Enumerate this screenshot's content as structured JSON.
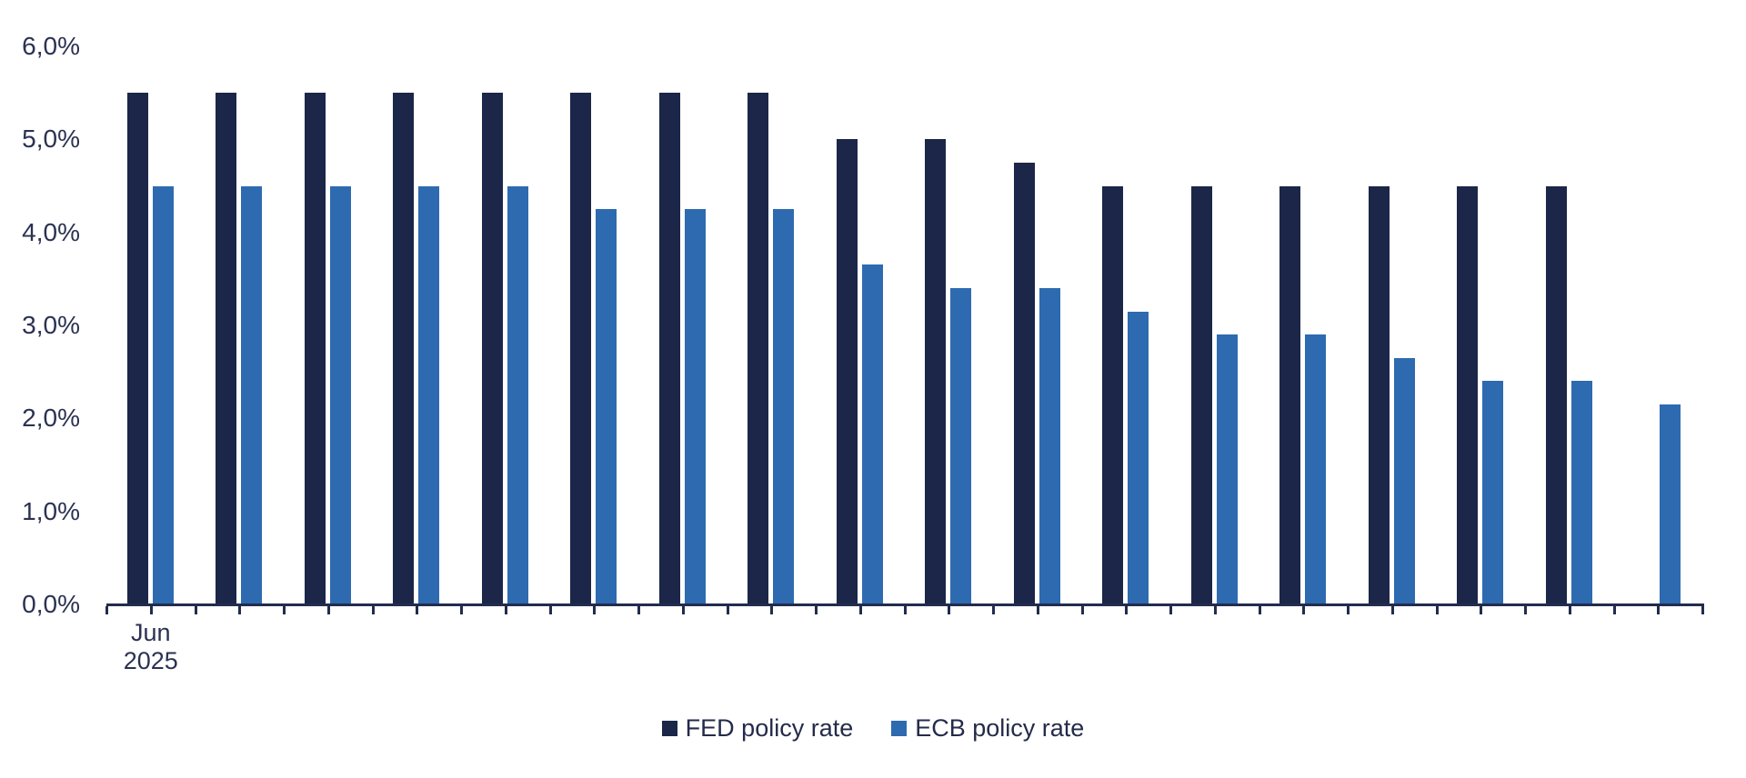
{
  "chart_data": {
    "type": "bar",
    "title": "",
    "grid": "off",
    "background": "#ffffff",
    "legend_position": "bottom-center",
    "ylim": [
      0,
      6
    ],
    "y_ticks": [
      "0,0%",
      "1,0%",
      "2,0%",
      "3,0%",
      "4,0%",
      "5,0%",
      "6,0%"
    ],
    "x_first_group_label_lines": [
      "Jun",
      "2025"
    ],
    "categories": [
      "Jun 2025",
      "",
      "",
      "",
      "",
      "",
      "",
      "",
      "",
      "",
      "",
      "",
      "",
      "",
      "",
      "",
      "",
      ""
    ],
    "series": [
      {
        "name": "FED policy rate",
        "color": "#1b2648",
        "values": [
          5.5,
          5.5,
          5.5,
          5.5,
          5.5,
          5.5,
          5.5,
          5.5,
          5.0,
          5.0,
          4.75,
          4.5,
          4.5,
          4.5,
          4.5,
          4.5,
          4.5,
          null
        ]
      },
      {
        "name": "ECB policy rate",
        "color": "#2e6ab0",
        "values": [
          4.5,
          4.5,
          4.5,
          4.5,
          4.5,
          4.25,
          4.25,
          4.25,
          3.65,
          3.4,
          3.4,
          3.15,
          2.9,
          2.9,
          2.65,
          2.4,
          2.4,
          2.15
        ]
      }
    ],
    "axis_color": "#222c4e",
    "text_color": "#2b3252"
  }
}
